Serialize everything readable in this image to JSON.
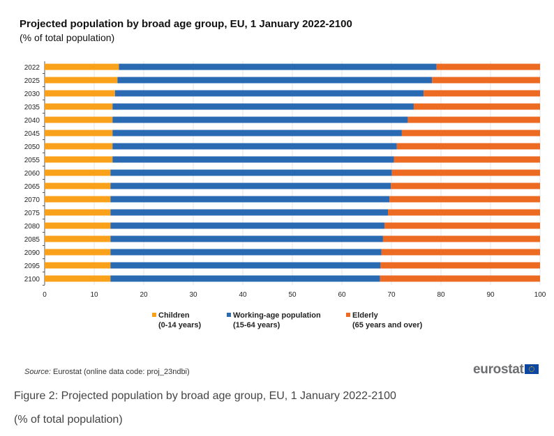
{
  "chart_data": {
    "type": "bar",
    "orientation": "horizontal",
    "stacked": true,
    "title": "Projected population by broad age group, EU, 1 January 2022-2100",
    "subtitle": "(% of total population)",
    "categories": [
      "2022",
      "2025",
      "2030",
      "2035",
      "2040",
      "2045",
      "2050",
      "2055",
      "2060",
      "2065",
      "2070",
      "2075",
      "2080",
      "2085",
      "2090",
      "2095",
      "2100"
    ],
    "series": [
      {
        "name": "Children",
        "sub": "(0-14 years)",
        "color": "#f9a11b",
        "values": [
          15.0,
          14.7,
          14.2,
          13.7,
          13.7,
          13.7,
          13.7,
          13.7,
          13.3,
          13.3,
          13.3,
          13.3,
          13.3,
          13.3,
          13.3,
          13.3,
          13.3
        ]
      },
      {
        "name": "Working-age population",
        "sub": "(15-64 years)",
        "color": "#2a6ab3",
        "values": [
          64.1,
          63.5,
          62.3,
          60.8,
          59.6,
          58.4,
          57.4,
          56.8,
          56.8,
          56.6,
          56.3,
          56.0,
          55.3,
          55.0,
          54.7,
          54.5,
          54.4
        ]
      },
      {
        "name": "Elderly",
        "sub": "(65 years and over)",
        "color": "#ed6a23",
        "values": [
          20.9,
          21.8,
          23.5,
          25.5,
          26.7,
          27.9,
          28.9,
          29.5,
          29.9,
          30.1,
          30.4,
          30.7,
          31.4,
          31.7,
          32.0,
          32.2,
          32.3
        ]
      }
    ],
    "xlim": [
      0,
      100
    ],
    "xticks": [
      0,
      10,
      20,
      30,
      40,
      50,
      60,
      70,
      80,
      90,
      100
    ],
    "grid": true,
    "legend": "bottom"
  },
  "source_label": "Source:",
  "source_text": " Eurostat (online data code: proj_23ndbi)",
  "logo_text": "eurostat",
  "caption": "Figure 2: Projected population by broad age group, EU, 1 January 2022-2100",
  "caption_sub": "(% of total population)"
}
